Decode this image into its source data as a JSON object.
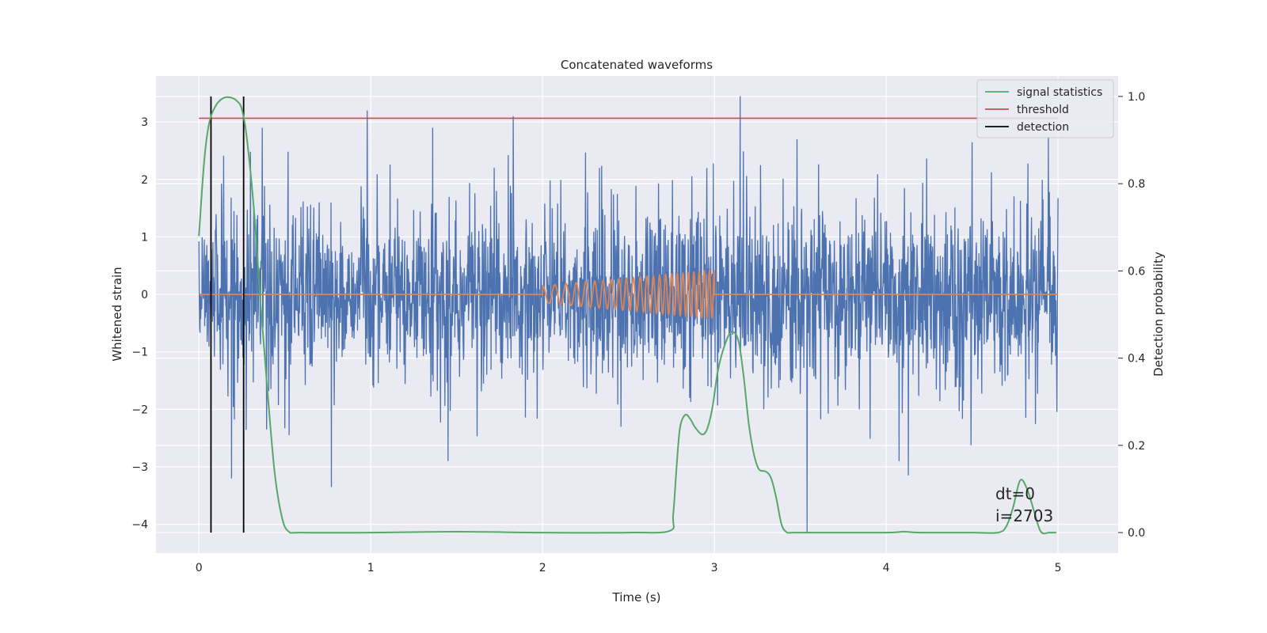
{
  "chart_data": {
    "type": "line",
    "title": "Concatenated waveforms",
    "xlabel": "Time (s)",
    "ylabel": "Whitened strain",
    "y2label": "Detection probability",
    "xlim": [
      -0.25,
      5.35
    ],
    "ylim": [
      -4.5,
      3.8
    ],
    "y2lim": [
      -0.047,
      1.047
    ],
    "xticks": [
      0,
      1,
      2,
      3,
      4,
      5
    ],
    "yticks": [
      -4,
      -3,
      -2,
      -1,
      0,
      1,
      2,
      3
    ],
    "y2ticks": [
      0.0,
      0.2,
      0.4,
      0.6,
      0.8,
      1.0
    ],
    "xtick_labels": [
      "0",
      "1",
      "2",
      "3",
      "4",
      "5"
    ],
    "ytick_labels": [
      "−4",
      "−3",
      "−2",
      "−1",
      "0",
      "1",
      "2",
      "3"
    ],
    "y2tick_labels": [
      "0.0",
      "0.2",
      "0.4",
      "0.6",
      "0.8",
      "1.0"
    ],
    "grid": true,
    "legend_position": "top-right",
    "colors": {
      "background": "#eaeaf2",
      "strain": "#4c72b0",
      "injected": "#dd8452",
      "signal": "#55a868",
      "threshold": "#c44e52",
      "detection": "#000000"
    },
    "series": [
      {
        "name": "strain",
        "axis": "left",
        "description_kind": "noise",
        "x_range": [
          0,
          5
        ],
        "typical_amplitude": 1.0,
        "spikes": [
          {
            "x": 0.98,
            "y": 3.2
          },
          {
            "x": 1.36,
            "y": 2.9
          },
          {
            "x": 1.83,
            "y": 3.1
          },
          {
            "x": 3.15,
            "y": 3.45
          },
          {
            "x": 3.54,
            "y": -4.15
          },
          {
            "x": 0.77,
            "y": -3.35
          },
          {
            "x": 0.19,
            "y": -3.2
          },
          {
            "x": 4.13,
            "y": -3.15
          }
        ]
      },
      {
        "name": "injected",
        "axis": "left",
        "x_range": [
          2.0,
          3.0
        ],
        "amplitude_start": 0.15,
        "amplitude_end": 0.42,
        "cycles": 24
      },
      {
        "name": "signal statistics",
        "axis": "right",
        "x": [
          0.0,
          0.03,
          0.06,
          0.1,
          0.14,
          0.18,
          0.22,
          0.25,
          0.28,
          0.32,
          0.36,
          0.4,
          0.44,
          0.48,
          0.52,
          0.6,
          1.0,
          1.5,
          2.0,
          2.5,
          2.74,
          2.76,
          2.78,
          2.8,
          2.83,
          2.86,
          2.89,
          2.93,
          2.96,
          2.99,
          3.02,
          3.06,
          3.1,
          3.14,
          3.17,
          3.2,
          3.23,
          3.26,
          3.3,
          3.33,
          3.36,
          3.39,
          3.42,
          3.46,
          3.6,
          4.0,
          4.1,
          4.2,
          4.5,
          4.65,
          4.7,
          4.74,
          4.78,
          4.82,
          4.86,
          4.9,
          4.95,
          4.99
        ],
        "y": [
          0.68,
          0.85,
          0.94,
          0.98,
          0.996,
          0.998,
          0.99,
          0.97,
          0.9,
          0.74,
          0.52,
          0.32,
          0.14,
          0.04,
          0.003,
          0.0,
          0.0,
          0.002,
          0.0,
          0.0,
          0.004,
          0.04,
          0.15,
          0.24,
          0.27,
          0.26,
          0.24,
          0.225,
          0.24,
          0.29,
          0.37,
          0.43,
          0.46,
          0.44,
          0.36,
          0.25,
          0.18,
          0.145,
          0.14,
          0.125,
          0.08,
          0.02,
          0.001,
          0.0,
          0.0,
          0.0,
          0.002,
          0.0,
          0.0,
          0.0,
          0.015,
          0.06,
          0.12,
          0.1,
          0.05,
          0.002,
          0.0,
          0.0
        ]
      },
      {
        "name": "threshold",
        "axis": "right",
        "x": [
          0,
          5
        ],
        "y": [
          0.95,
          0.95
        ]
      },
      {
        "name": "detection",
        "axis": "right",
        "x": [
          0.07,
          0.26
        ],
        "y_range": [
          0.0,
          1.0
        ]
      }
    ],
    "legend": [
      "signal statistics",
      "threshold",
      "detection"
    ],
    "annotations": [
      "dt=0",
      "i=2703"
    ]
  }
}
